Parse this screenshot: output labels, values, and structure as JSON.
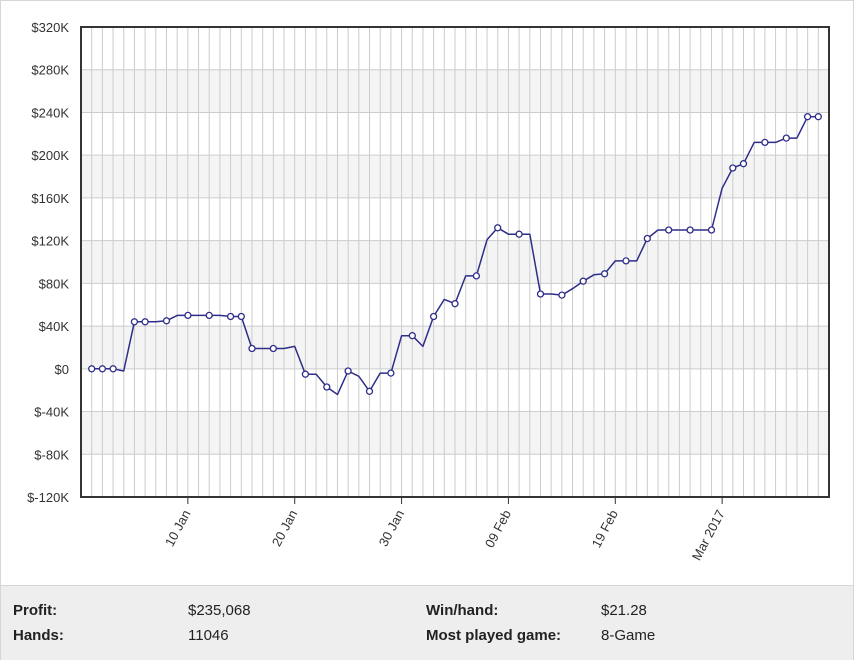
{
  "chart_data": {
    "type": "line",
    "title": "",
    "xlabel": "",
    "ylabel": "",
    "ylim": [
      -120000,
      320000
    ],
    "y_ticks": [
      -120000,
      -80000,
      -40000,
      0,
      40000,
      80000,
      120000,
      160000,
      200000,
      240000,
      280000,
      320000
    ],
    "y_tick_labels": [
      "$-120K",
      "$-80K",
      "$-40K",
      "$0",
      "$40K",
      "$80K",
      "$120K",
      "$160K",
      "$200K",
      "$240K",
      "$280K",
      "$320K"
    ],
    "xlim": [
      "2016-12-31",
      "2017-03-11"
    ],
    "x_ticks": [
      "2017-01-10",
      "2017-01-20",
      "2017-01-30",
      "2017-02-09",
      "2017-02-19",
      "2017-03-01"
    ],
    "x_tick_labels": [
      "10 Jan",
      "20 Jan",
      "30 Jan",
      "09 Feb",
      "19 Feb",
      "Mar 2017"
    ],
    "grid": true,
    "line_color": "#2e2e8a",
    "marker_fill": "#ffffff",
    "series": [
      {
        "x": [
          "2017-01-01",
          "2017-01-02",
          "2017-01-03",
          "2017-01-04",
          "2017-01-05",
          "2017-01-06",
          "2017-01-07",
          "2017-01-08",
          "2017-01-09",
          "2017-01-10",
          "2017-01-11",
          "2017-01-12",
          "2017-01-13",
          "2017-01-14",
          "2017-01-15",
          "2017-01-16",
          "2017-01-17",
          "2017-01-18",
          "2017-01-19",
          "2017-01-20",
          "2017-01-21",
          "2017-01-22",
          "2017-01-23",
          "2017-01-24",
          "2017-01-25",
          "2017-01-26",
          "2017-01-27",
          "2017-01-28",
          "2017-01-29",
          "2017-01-30",
          "2017-01-31",
          "2017-02-01",
          "2017-02-02",
          "2017-02-03",
          "2017-02-04",
          "2017-02-05",
          "2017-02-06",
          "2017-02-07",
          "2017-02-08",
          "2017-02-09",
          "2017-02-10",
          "2017-02-11",
          "2017-02-12",
          "2017-02-13",
          "2017-02-14",
          "2017-02-15",
          "2017-02-16",
          "2017-02-17",
          "2017-02-18",
          "2017-02-19",
          "2017-02-20",
          "2017-02-21",
          "2017-02-22",
          "2017-02-23",
          "2017-02-24",
          "2017-02-25",
          "2017-02-26",
          "2017-02-27",
          "2017-02-28",
          "2017-03-01",
          "2017-03-02",
          "2017-03-03",
          "2017-03-04",
          "2017-03-05",
          "2017-03-06",
          "2017-03-07",
          "2017-03-08",
          "2017-03-09",
          "2017-03-10"
        ],
        "values": [
          0,
          0,
          0,
          -2000,
          44000,
          44000,
          44000,
          45000,
          50000,
          50000,
          50000,
          50000,
          50000,
          49000,
          49000,
          19000,
          19000,
          19000,
          19000,
          21000,
          -5000,
          -5000,
          -17000,
          -24000,
          -2000,
          -7000,
          -21000,
          -4000,
          -4000,
          31000,
          31000,
          21000,
          49000,
          65000,
          61000,
          87000,
          87000,
          121000,
          132000,
          126000,
          126000,
          126000,
          70000,
          70000,
          69000,
          75000,
          82000,
          88000,
          89000,
          101000,
          101000,
          101000,
          122000,
          130000,
          130000,
          130000,
          130000,
          130000,
          130000,
          169000,
          188000,
          192000,
          212000,
          212000,
          212000,
          216000,
          216000,
          236000,
          236000
        ],
        "markers": [
          true,
          true,
          true,
          false,
          true,
          true,
          false,
          true,
          false,
          true,
          false,
          true,
          false,
          true,
          true,
          true,
          false,
          true,
          false,
          false,
          true,
          false,
          true,
          false,
          true,
          false,
          true,
          false,
          true,
          false,
          true,
          false,
          true,
          false,
          true,
          false,
          true,
          false,
          true,
          false,
          true,
          false,
          true,
          false,
          true,
          false,
          true,
          false,
          true,
          false,
          true,
          false,
          true,
          false,
          true,
          false,
          true,
          false,
          true,
          false,
          true,
          true,
          false,
          true,
          false,
          true,
          false,
          true,
          true
        ]
      }
    ]
  },
  "stats": {
    "profit_label": "Profit:",
    "profit_value": "$235,068",
    "hands_label": "Hands:",
    "hands_value": "11046",
    "winhand_label": "Win/hand:",
    "winhand_value": "$21.28",
    "game_label": "Most played game:",
    "game_value": "8-Game"
  }
}
